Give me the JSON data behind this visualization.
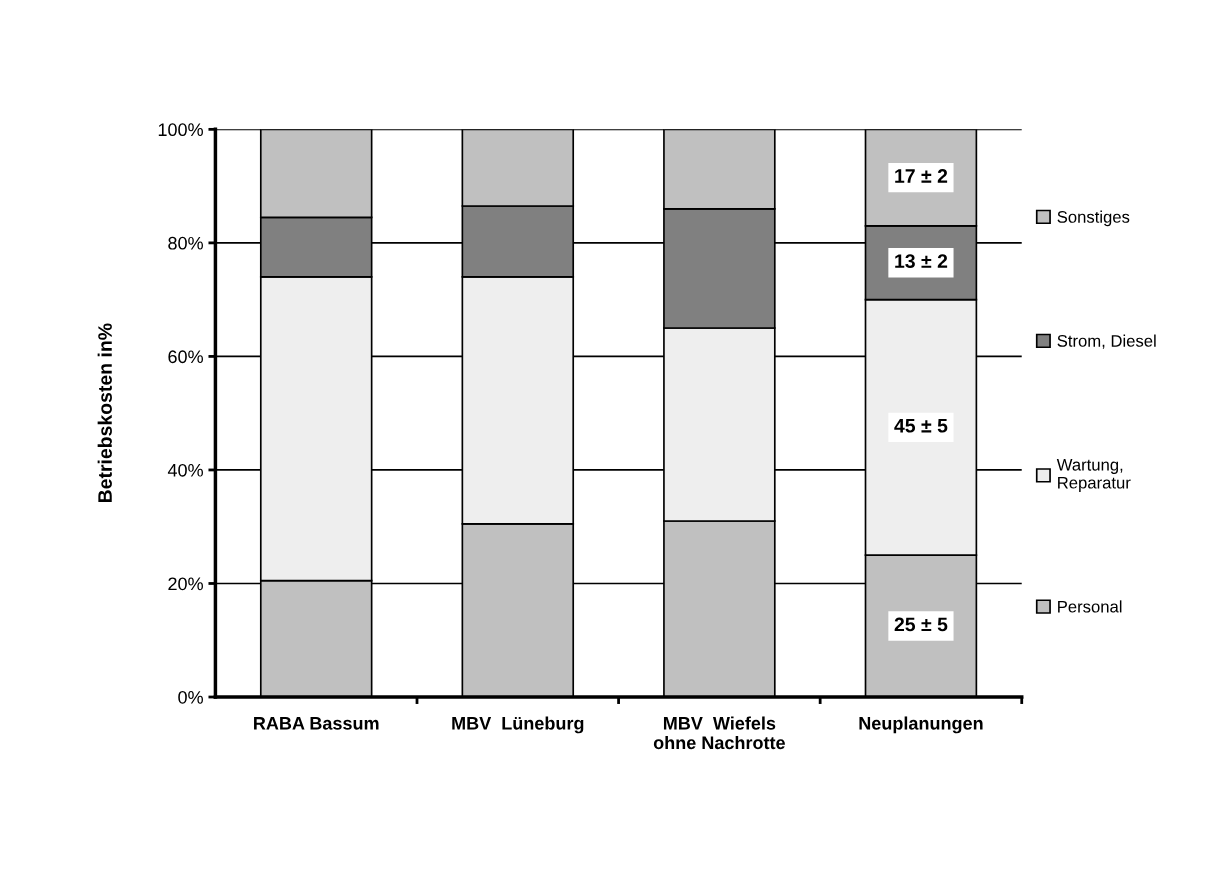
{
  "chart_data": {
    "type": "bar",
    "stacked": true,
    "ylabel": "Betriebskosten in%",
    "categories": [
      "RABA Bassum",
      "MBV  Lüneburg",
      "MBV  Wiefels\nohne Nachrotte",
      "Neuplanungen"
    ],
    "series": [
      {
        "name": "Personal",
        "color": "#c0c0c0",
        "values": [
          20.5,
          30.5,
          31,
          25
        ],
        "value_labels": [
          null,
          null,
          null,
          "25 ± 5"
        ]
      },
      {
        "name": "Wartung,\nReparatur",
        "color": "#eeeeee",
        "values": [
          53.5,
          43.5,
          34,
          45
        ],
        "value_labels": [
          null,
          null,
          null,
          "45 ± 5"
        ]
      },
      {
        "name": "Strom, Diesel",
        "color": "#808080",
        "values": [
          10.5,
          12.5,
          21,
          13
        ],
        "value_labels": [
          null,
          null,
          null,
          "13 ± 2"
        ]
      },
      {
        "name": "Sonstiges",
        "color": "#c0c0c0",
        "values": [
          15.5,
          13.5,
          14,
          17
        ],
        "value_labels": [
          null,
          null,
          null,
          "17 ± 2"
        ]
      }
    ],
    "ylim": [
      0,
      100
    ],
    "yticks": [
      {
        "value": 0,
        "label": "0%"
      },
      {
        "value": 20,
        "label": "20%"
      },
      {
        "value": 40,
        "label": "40%"
      },
      {
        "value": 60,
        "label": "60%"
      },
      {
        "value": 80,
        "label": "80%"
      },
      {
        "value": 100,
        "label": "100%"
      }
    ],
    "grid": "y",
    "legend": "right"
  }
}
